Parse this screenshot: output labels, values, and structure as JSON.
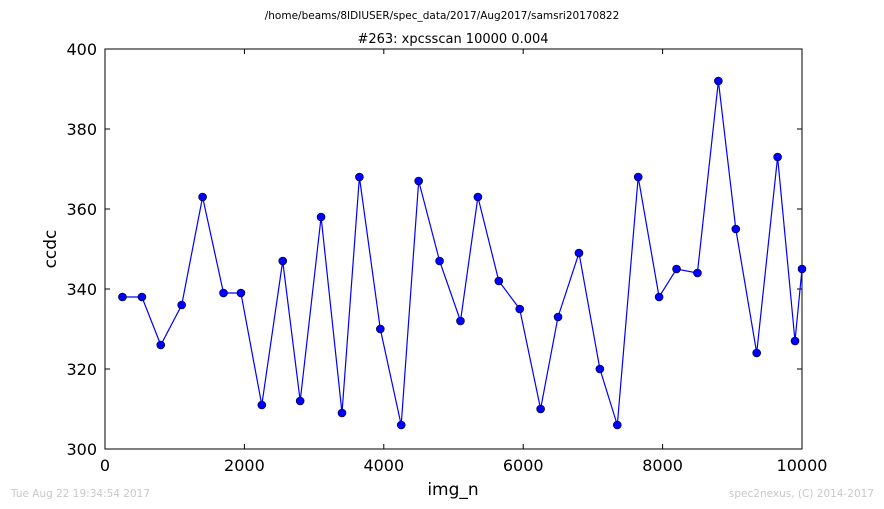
{
  "chart_data": {
    "type": "line",
    "suptitle": "/home/beams/8IDIUSER/spec_data/2017/Aug2017/samsri20170822",
    "title": "#263: xpcsscan 10000 0.004",
    "xlabel": "img_n",
    "ylabel": "ccdc",
    "xlim": [
      0,
      10000
    ],
    "ylim": [
      300,
      400
    ],
    "xticks": [
      0,
      2000,
      4000,
      6000,
      8000,
      10000
    ],
    "yticks": [
      300,
      320,
      340,
      360,
      380,
      400
    ],
    "grid": false,
    "legend": "none",
    "colors": {
      "line": "#0000ff",
      "marker": "#0000ff",
      "marker_edge": "#000000"
    },
    "series": [
      {
        "x": [
          250,
          530,
          800,
          1100,
          1400,
          1700,
          1950,
          2250,
          2550,
          2800,
          3100,
          3400,
          3650,
          3950,
          4250,
          4500,
          4800,
          5100,
          5350,
          5650,
          5950,
          6250,
          6500,
          6800,
          7100,
          7350,
          7650,
          7950,
          8200,
          8500,
          8800,
          9050,
          9350,
          9650,
          9900,
          10000
        ],
        "y": [
          338,
          338,
          326,
          336,
          363,
          339,
          339,
          311,
          347,
          312,
          358,
          309,
          368,
          330,
          306,
          367,
          347,
          332,
          363,
          342,
          335,
          310,
          333,
          349,
          320,
          306,
          368,
          338,
          345,
          344,
          392,
          355,
          324,
          373,
          327,
          345
        ]
      }
    ]
  },
  "footer": {
    "timestamp": "Tue Aug 22 19:34:54 2017",
    "credit": "spec2nexus, (C) 2014-2017"
  }
}
